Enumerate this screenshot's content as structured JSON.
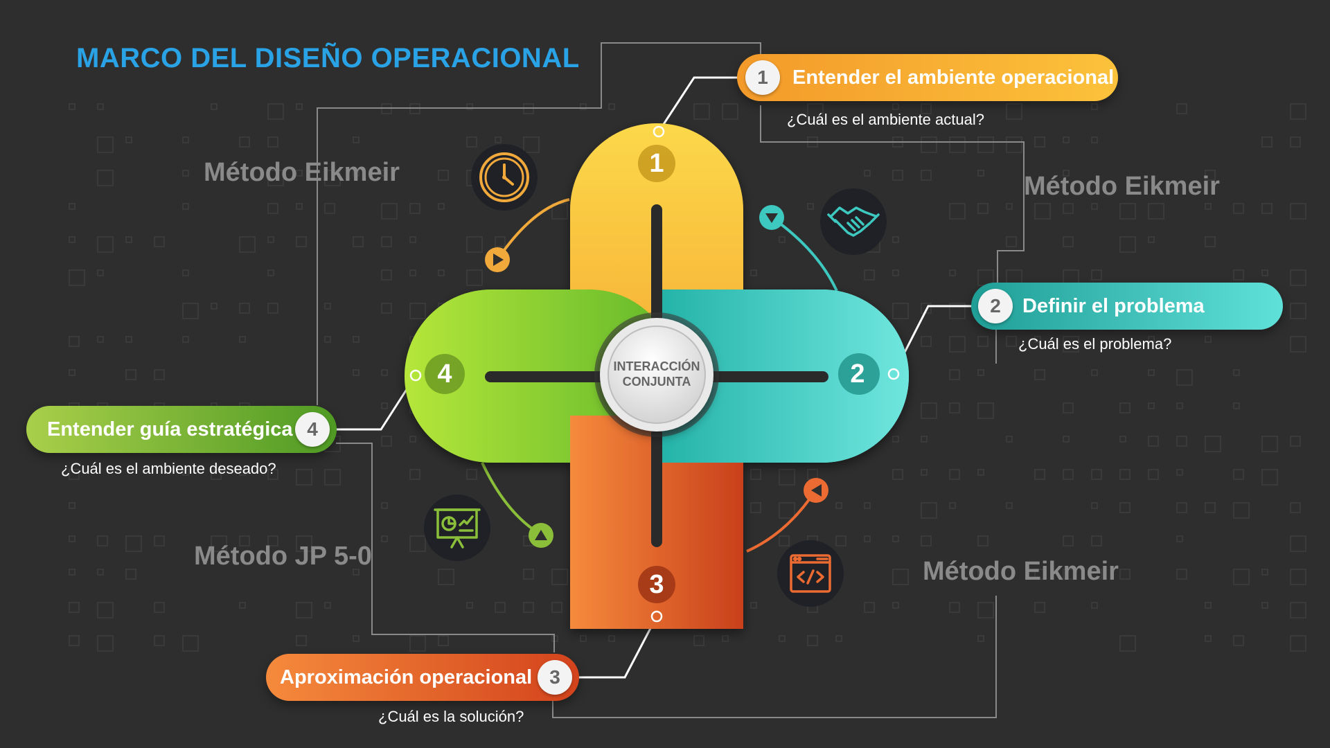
{
  "title": "MARCO DEL DISEÑO OPERACIONAL",
  "center": {
    "line1": "INTERACCIÓN",
    "line2": "CONJUNTA"
  },
  "methods": {
    "top_left": "Método Eikmeir",
    "top_right": "Método Eikmeir",
    "bottom_right": "Método Eikmeir",
    "bottom_left": "Método JP 5-0"
  },
  "steps": [
    {
      "number": "1",
      "label": "Entender el ambiente operacional",
      "question": "¿Cuál es el ambiente actual?",
      "color": "#f2a93b"
    },
    {
      "number": "2",
      "label": "Definir el problema",
      "question": "¿Cuál es el problema?",
      "color": "#3ec9c0"
    },
    {
      "number": "3",
      "label": "Aproximación operacional",
      "question": "¿Cuál es la solución?",
      "color": "#ec6b32"
    },
    {
      "number": "4",
      "label": "Entender guía estratégica",
      "question": "¿Cuál es el ambiente deseado?",
      "color": "#8bbf3a"
    }
  ],
  "icons": [
    "clock-icon",
    "handshake-icon",
    "presentation-chart-icon",
    "code-window-icon"
  ]
}
